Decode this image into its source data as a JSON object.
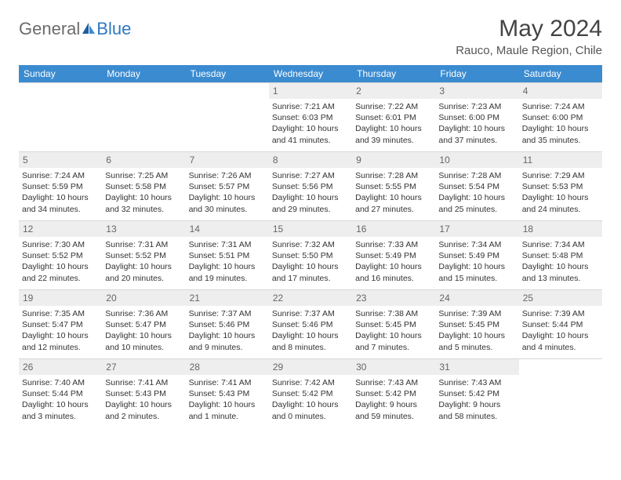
{
  "brand": {
    "part1": "General",
    "part2": "Blue"
  },
  "title": "May 2024",
  "location": "Rauco, Maule Region, Chile",
  "colors": {
    "header_bg": "#3b8bd0",
    "header_fg": "#ffffff",
    "daynum_bg": "#eeeeee",
    "rule": "#d7d7d7",
    "logo_gray": "#6b6b6b",
    "logo_blue": "#2f79c2"
  },
  "weekdays": [
    "Sunday",
    "Monday",
    "Tuesday",
    "Wednesday",
    "Thursday",
    "Friday",
    "Saturday"
  ],
  "weeks": [
    [
      null,
      null,
      null,
      {
        "n": "1",
        "sr": "7:21 AM",
        "ss": "6:03 PM",
        "dl": "10 hours and 41 minutes."
      },
      {
        "n": "2",
        "sr": "7:22 AM",
        "ss": "6:01 PM",
        "dl": "10 hours and 39 minutes."
      },
      {
        "n": "3",
        "sr": "7:23 AM",
        "ss": "6:00 PM",
        "dl": "10 hours and 37 minutes."
      },
      {
        "n": "4",
        "sr": "7:24 AM",
        "ss": "6:00 PM",
        "dl": "10 hours and 35 minutes."
      }
    ],
    [
      {
        "n": "5",
        "sr": "7:24 AM",
        "ss": "5:59 PM",
        "dl": "10 hours and 34 minutes."
      },
      {
        "n": "6",
        "sr": "7:25 AM",
        "ss": "5:58 PM",
        "dl": "10 hours and 32 minutes."
      },
      {
        "n": "7",
        "sr": "7:26 AM",
        "ss": "5:57 PM",
        "dl": "10 hours and 30 minutes."
      },
      {
        "n": "8",
        "sr": "7:27 AM",
        "ss": "5:56 PM",
        "dl": "10 hours and 29 minutes."
      },
      {
        "n": "9",
        "sr": "7:28 AM",
        "ss": "5:55 PM",
        "dl": "10 hours and 27 minutes."
      },
      {
        "n": "10",
        "sr": "7:28 AM",
        "ss": "5:54 PM",
        "dl": "10 hours and 25 minutes."
      },
      {
        "n": "11",
        "sr": "7:29 AM",
        "ss": "5:53 PM",
        "dl": "10 hours and 24 minutes."
      }
    ],
    [
      {
        "n": "12",
        "sr": "7:30 AM",
        "ss": "5:52 PM",
        "dl": "10 hours and 22 minutes."
      },
      {
        "n": "13",
        "sr": "7:31 AM",
        "ss": "5:52 PM",
        "dl": "10 hours and 20 minutes."
      },
      {
        "n": "14",
        "sr": "7:31 AM",
        "ss": "5:51 PM",
        "dl": "10 hours and 19 minutes."
      },
      {
        "n": "15",
        "sr": "7:32 AM",
        "ss": "5:50 PM",
        "dl": "10 hours and 17 minutes."
      },
      {
        "n": "16",
        "sr": "7:33 AM",
        "ss": "5:49 PM",
        "dl": "10 hours and 16 minutes."
      },
      {
        "n": "17",
        "sr": "7:34 AM",
        "ss": "5:49 PM",
        "dl": "10 hours and 15 minutes."
      },
      {
        "n": "18",
        "sr": "7:34 AM",
        "ss": "5:48 PM",
        "dl": "10 hours and 13 minutes."
      }
    ],
    [
      {
        "n": "19",
        "sr": "7:35 AM",
        "ss": "5:47 PM",
        "dl": "10 hours and 12 minutes."
      },
      {
        "n": "20",
        "sr": "7:36 AM",
        "ss": "5:47 PM",
        "dl": "10 hours and 10 minutes."
      },
      {
        "n": "21",
        "sr": "7:37 AM",
        "ss": "5:46 PM",
        "dl": "10 hours and 9 minutes."
      },
      {
        "n": "22",
        "sr": "7:37 AM",
        "ss": "5:46 PM",
        "dl": "10 hours and 8 minutes."
      },
      {
        "n": "23",
        "sr": "7:38 AM",
        "ss": "5:45 PM",
        "dl": "10 hours and 7 minutes."
      },
      {
        "n": "24",
        "sr": "7:39 AM",
        "ss": "5:45 PM",
        "dl": "10 hours and 5 minutes."
      },
      {
        "n": "25",
        "sr": "7:39 AM",
        "ss": "5:44 PM",
        "dl": "10 hours and 4 minutes."
      }
    ],
    [
      {
        "n": "26",
        "sr": "7:40 AM",
        "ss": "5:44 PM",
        "dl": "10 hours and 3 minutes."
      },
      {
        "n": "27",
        "sr": "7:41 AM",
        "ss": "5:43 PM",
        "dl": "10 hours and 2 minutes."
      },
      {
        "n": "28",
        "sr": "7:41 AM",
        "ss": "5:43 PM",
        "dl": "10 hours and 1 minute."
      },
      {
        "n": "29",
        "sr": "7:42 AM",
        "ss": "5:42 PM",
        "dl": "10 hours and 0 minutes."
      },
      {
        "n": "30",
        "sr": "7:43 AM",
        "ss": "5:42 PM",
        "dl": "9 hours and 59 minutes."
      },
      {
        "n": "31",
        "sr": "7:43 AM",
        "ss": "5:42 PM",
        "dl": "9 hours and 58 minutes."
      },
      null
    ]
  ],
  "labels": {
    "sunrise": "Sunrise:",
    "sunset": "Sunset:",
    "daylight": "Daylight:"
  }
}
